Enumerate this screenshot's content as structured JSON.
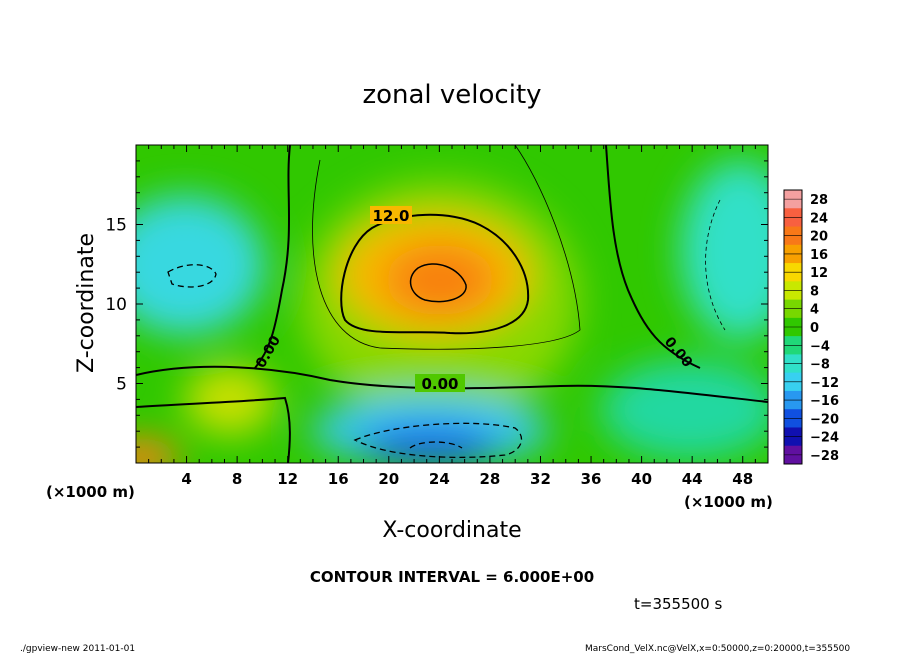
{
  "chart_data": {
    "type": "heatmap",
    "title": "zonal velocity",
    "xlabel": "X-coordinate",
    "ylabel": "Z-coordinate",
    "x_unit": "(×1000 m)",
    "y_unit": "(×1000 m)",
    "xlim": [
      0,
      50
    ],
    "ylim": [
      0,
      20
    ],
    "x_ticks": [
      4,
      8,
      12,
      16,
      20,
      24,
      28,
      32,
      36,
      40,
      44,
      48
    ],
    "y_ticks": [
      5,
      10,
      15
    ],
    "colorbar": {
      "levels": [
        28,
        24,
        20,
        16,
        12,
        8,
        4,
        0,
        -4,
        -8,
        -12,
        -16,
        -20,
        -24,
        -28
      ],
      "colors": [
        "#f4a0a0",
        "#f86040",
        "#f87818",
        "#f8a000",
        "#f8d800",
        "#c8e800",
        "#78d800",
        "#30c800",
        "#20d878",
        "#30e0c8",
        "#38d0f0",
        "#2898f0",
        "#1050e0",
        "#1010b0",
        "#6010a0"
      ]
    },
    "contour_labels": [
      "12.0",
      "0.00",
      "0.00",
      "0.00"
    ],
    "contour_interval_text": "CONTOUR INTERVAL = 6.000E+00",
    "time_text": "t=355500 s"
  },
  "footer": {
    "left": "./gpview-new   2011-01-01",
    "right": "MarsCond_VelX.nc@VelX,x=0:50000,z=0:20000,t=355500"
  }
}
